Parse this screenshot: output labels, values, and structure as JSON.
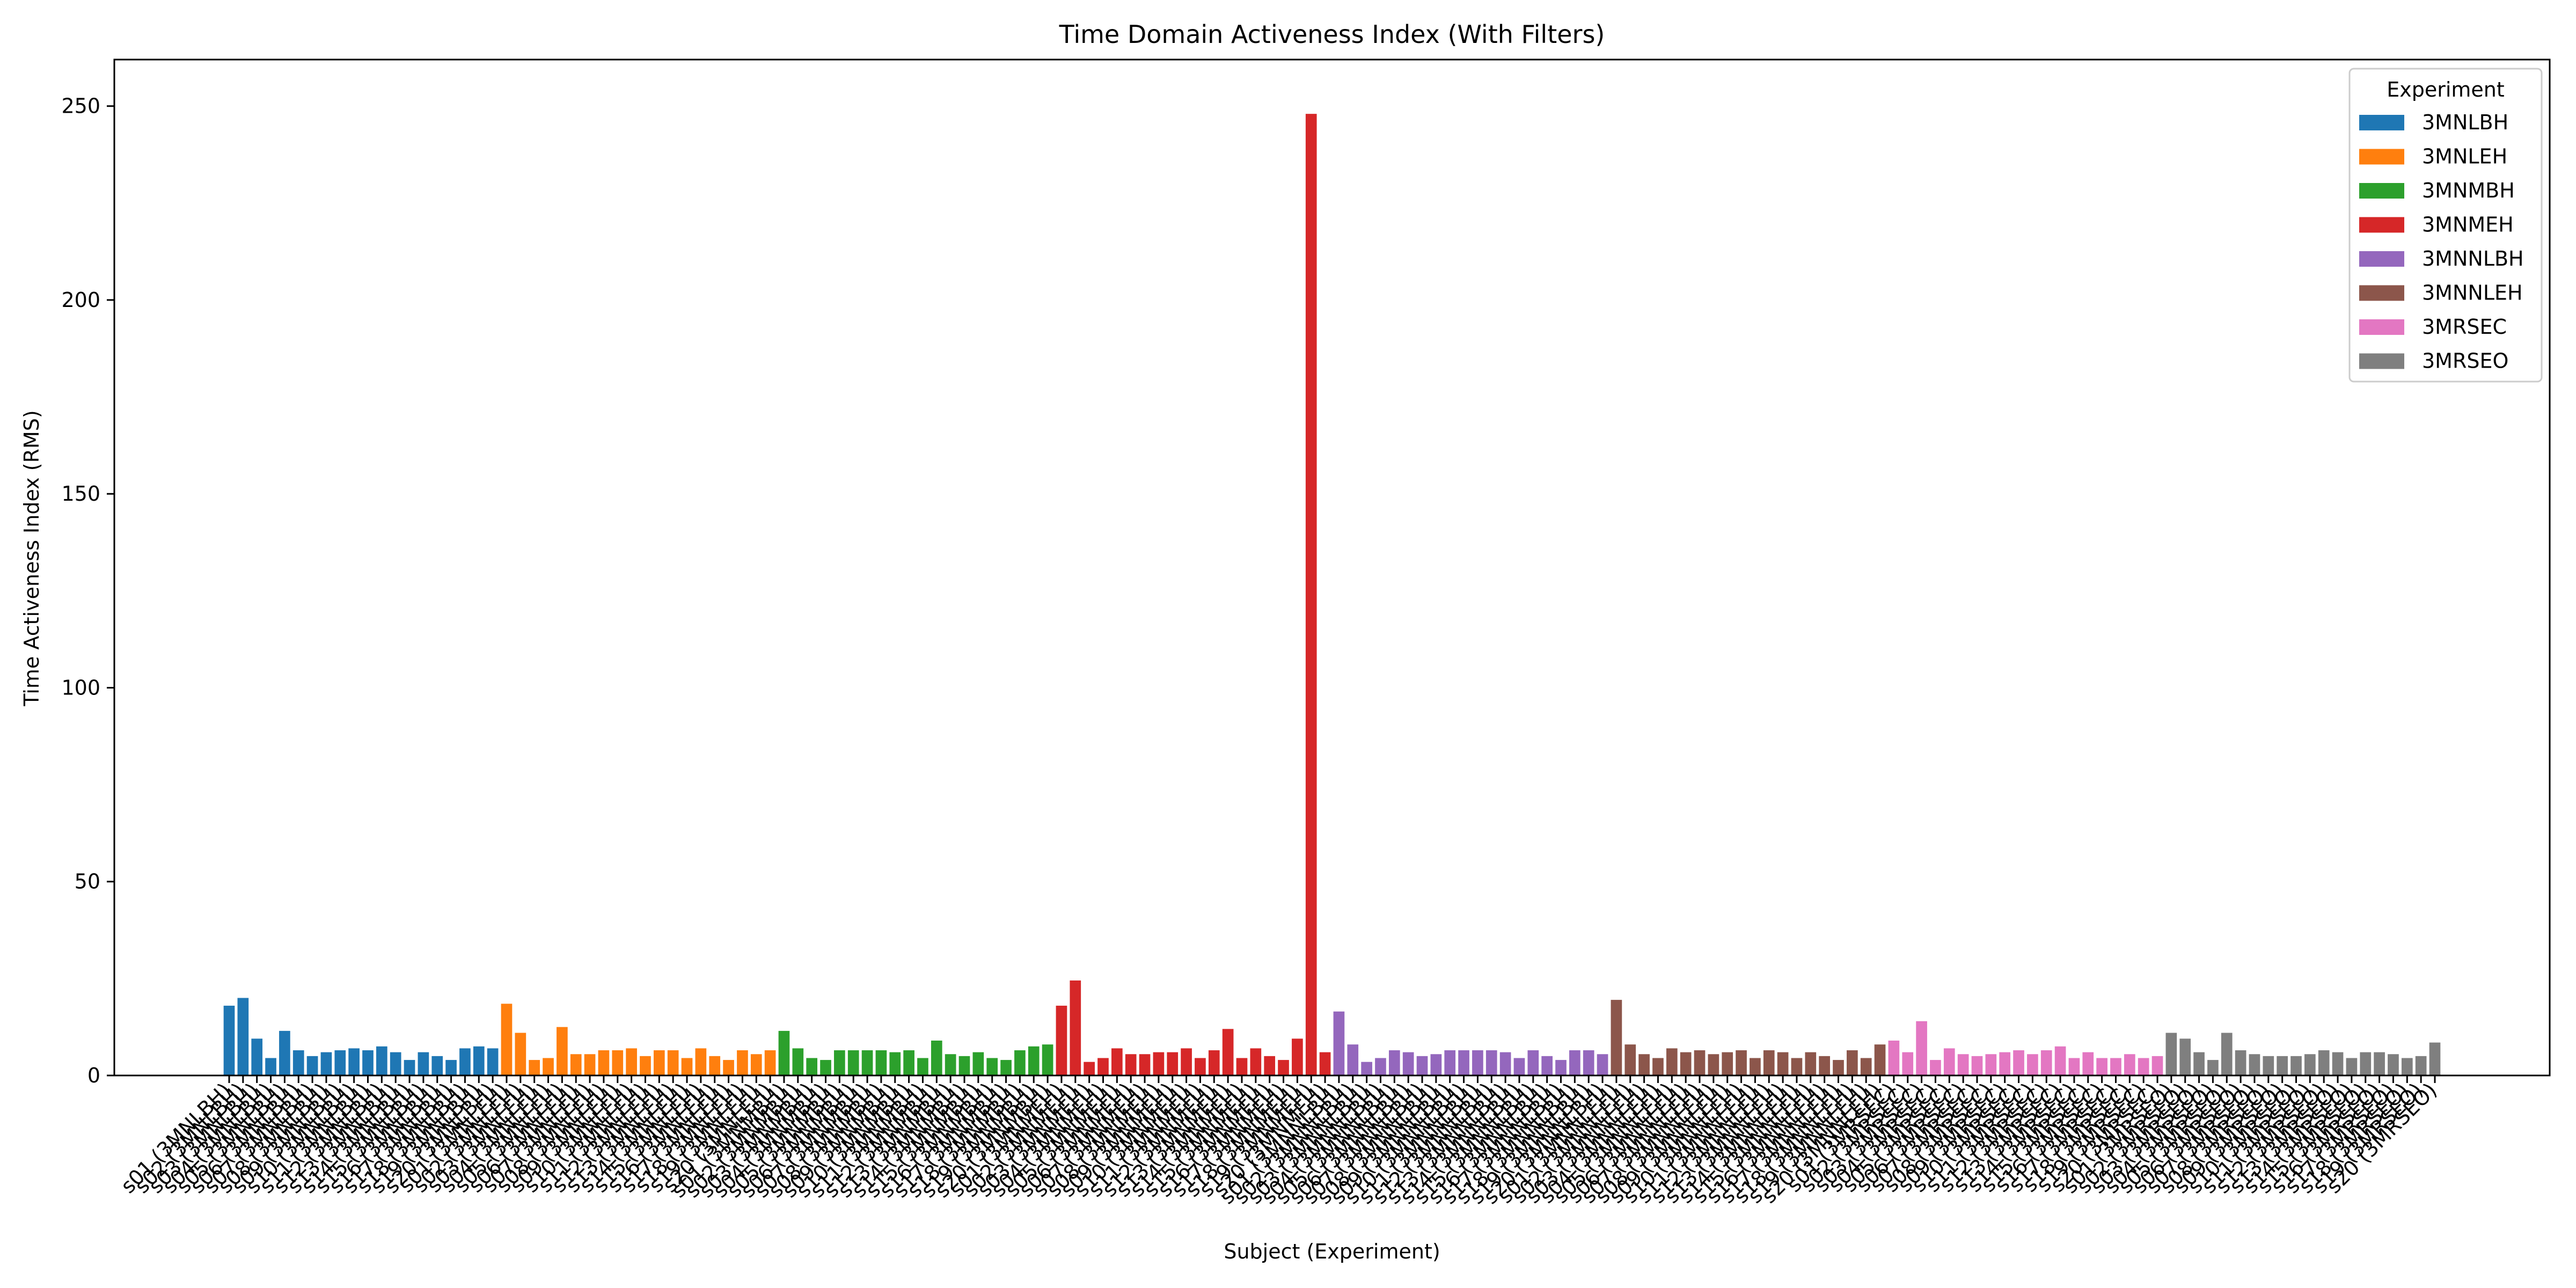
{
  "chart_data": {
    "type": "bar",
    "title": "Time Domain Activeness Index (With Filters)",
    "xlabel": "Subject (Experiment)",
    "ylabel": "Time Activeness Index (RMS)",
    "ylim": [
      0,
      262
    ],
    "yticks": [
      0,
      50,
      100,
      150,
      200,
      250
    ],
    "grid": false,
    "legend": {
      "title": "Experiment",
      "placement": "top-right"
    },
    "series": [
      {
        "name": "3MNLBH",
        "color": "#1f77b4",
        "categories": [
          "s01 (3MNLBH)",
          "s02 (3MNLBH)",
          "s03 (3MNLBH)",
          "s04 (3MNLBH)",
          "s05 (3MNLBH)",
          "s06 (3MNLBH)",
          "s07 (3MNLBH)",
          "s08 (3MNLBH)",
          "s09 (3MNLBH)",
          "s10 (3MNLBH)",
          "s11 (3MNLBH)",
          "s12 (3MNLBH)",
          "s13 (3MNLBH)",
          "s14 (3MNLBH)",
          "s15 (3MNLBH)",
          "s16 (3MNLBH)",
          "s17 (3MNLBH)",
          "s18 (3MNLBH)",
          "s19 (3MNLBH)",
          "s20 (3MNLBH)"
        ],
        "values": [
          18,
          20,
          9.5,
          4.5,
          11.5,
          6.5,
          5,
          6,
          6.5,
          7,
          6.5,
          7.5,
          6,
          4,
          6,
          5,
          4,
          7,
          7.5,
          7
        ]
      },
      {
        "name": "3MNLEH",
        "color": "#ff7f0e",
        "categories": [
          "s01 (3MNLEH)",
          "s02 (3MNLEH)",
          "s03 (3MNLEH)",
          "s04 (3MNLEH)",
          "s05 (3MNLEH)",
          "s06 (3MNLEH)",
          "s07 (3MNLEH)",
          "s08 (3MNLEH)",
          "s09 (3MNLEH)",
          "s10 (3MNLEH)",
          "s11 (3MNLEH)",
          "s12 (3MNLEH)",
          "s13 (3MNLEH)",
          "s14 (3MNLEH)",
          "s15 (3MNLEH)",
          "s16 (3MNLEH)",
          "s17 (3MNLEH)",
          "s18 (3MNLEH)",
          "s19 (3MNLEH)",
          "s20 (3MNLEH)"
        ],
        "values": [
          18.5,
          11,
          4,
          4.5,
          12.5,
          5.5,
          5.5,
          6.5,
          6.5,
          7,
          5,
          6.5,
          6.5,
          4.5,
          7,
          5,
          4,
          6.5,
          5.5,
          6.5
        ]
      },
      {
        "name": "3MNMBH",
        "color": "#2ca02c",
        "categories": [
          "s01 (3MNMBH)",
          "s02 (3MNMBH)",
          "s03 (3MNMBH)",
          "s04 (3MNMBH)",
          "s05 (3MNMBH)",
          "s06 (3MNMBH)",
          "s07 (3MNMBH)",
          "s08 (3MNMBH)",
          "s09 (3MNMBH)",
          "s10 (3MNMBH)",
          "s11 (3MNMBH)",
          "s12 (3MNMBH)",
          "s13 (3MNMBH)",
          "s14 (3MNMBH)",
          "s15 (3MNMBH)",
          "s16 (3MNMBH)",
          "s17 (3MNMBH)",
          "s18 (3MNMBH)",
          "s19 (3MNMBH)",
          "s20 (3MNMBH)"
        ],
        "values": [
          11.5,
          7,
          4.5,
          4,
          6.5,
          6.5,
          6.5,
          6.5,
          6,
          6.5,
          4.5,
          9,
          5.5,
          5,
          6,
          4.5,
          4,
          6.5,
          7.5,
          8
        ]
      },
      {
        "name": "3MNMEH",
        "color": "#d62728",
        "categories": [
          "s01 (3MNMEH)",
          "s02 (3MNMEH)",
          "s03 (3MNMEH)",
          "s04 (3MNMEH)",
          "s05 (3MNMEH)",
          "s06 (3MNMEH)",
          "s07 (3MNMEH)",
          "s08 (3MNMEH)",
          "s09 (3MNMEH)",
          "s10 (3MNMEH)",
          "s11 (3MNMEH)",
          "s12 (3MNMEH)",
          "s13 (3MNMEH)",
          "s14 (3MNMEH)",
          "s15 (3MNMEH)",
          "s16 (3MNMEH)",
          "s17 (3MNMEH)",
          "s18 (3MNMEH)",
          "s19 (3MNMEH)",
          "s20 (3MNMEH)"
        ],
        "values": [
          18,
          24.5,
          3.5,
          4.5,
          7,
          5.5,
          5.5,
          6,
          6,
          7,
          4.5,
          6.5,
          12,
          4.5,
          7,
          5,
          4,
          9.5,
          248,
          6
        ]
      },
      {
        "name": "3MNNLBH",
        "color": "#9467bd",
        "categories": [
          "s01 (3MNNLBH)",
          "s02 (3MNNLBH)",
          "s03 (3MNNLBH)",
          "s04 (3MNNLBH)",
          "s05 (3MNNLBH)",
          "s06 (3MNNLBH)",
          "s07 (3MNNLBH)",
          "s08 (3MNNLBH)",
          "s09 (3MNNLBH)",
          "s10 (3MNNLBH)",
          "s11 (3MNNLBH)",
          "s12 (3MNNLBH)",
          "s13 (3MNNLBH)",
          "s14 (3MNNLBH)",
          "s15 (3MNNLBH)",
          "s16 (3MNNLBH)",
          "s17 (3MNNLBH)",
          "s18 (3MNNLBH)",
          "s19 (3MNNLBH)",
          "s20 (3MNNLBH)"
        ],
        "values": [
          16.5,
          8,
          3.5,
          4.5,
          6.5,
          6,
          5,
          5.5,
          6.5,
          6.5,
          6.5,
          6.5,
          6,
          4.5,
          6.5,
          5,
          4,
          6.5,
          6.5,
          5.5
        ]
      },
      {
        "name": "3MNNLEH",
        "color": "#8c564b",
        "categories": [
          "s01 (3MNNLEH)",
          "s02 (3MNNLEH)",
          "s03 (3MNNLEH)",
          "s04 (3MNNLEH)",
          "s05 (3MNNLEH)",
          "s06 (3MNNLEH)",
          "s07 (3MNNLEH)",
          "s08 (3MNNLEH)",
          "s09 (3MNNLEH)",
          "s10 (3MNNLEH)",
          "s11 (3MNNLEH)",
          "s12 (3MNNLEH)",
          "s13 (3MNNLEH)",
          "s14 (3MNNLEH)",
          "s15 (3MNNLEH)",
          "s16 (3MNNLEH)",
          "s17 (3MNNLEH)",
          "s18 (3MNNLEH)",
          "s19 (3MNNLEH)",
          "s20 (3MNNLEH)"
        ],
        "values": [
          19.5,
          8,
          5.5,
          4.5,
          7,
          6,
          6.5,
          5.5,
          6,
          6.5,
          4.5,
          6.5,
          6,
          4.5,
          6,
          5,
          4,
          6.5,
          4.5,
          8
        ]
      },
      {
        "name": "3MRSEC",
        "color": "#e377c2",
        "categories": [
          "s01 (3MRSEC)",
          "s02 (3MRSEC)",
          "s03 (3MRSEC)",
          "s04 (3MRSEC)",
          "s05 (3MRSEC)",
          "s06 (3MRSEC)",
          "s07 (3MRSEC)",
          "s08 (3MRSEC)",
          "s09 (3MRSEC)",
          "s10 (3MRSEC)",
          "s11 (3MRSEC)",
          "s12 (3MRSEC)",
          "s13 (3MRSEC)",
          "s14 (3MRSEC)",
          "s15 (3MRSEC)",
          "s16 (3MRSEC)",
          "s17 (3MRSEC)",
          "s18 (3MRSEC)",
          "s19 (3MRSEC)",
          "s20 (3MRSEC)"
        ],
        "values": [
          9,
          6,
          14,
          4,
          7,
          5.5,
          5,
          5.5,
          6,
          6.5,
          5.5,
          6.5,
          7.5,
          4.5,
          6,
          4.5,
          4.5,
          5.5,
          4.5,
          5
        ]
      },
      {
        "name": "3MRSEO",
        "color": "#7f7f7f",
        "categories": [
          "s01 (3MRSEO)",
          "s02 (3MRSEO)",
          "s03 (3MRSEO)",
          "s04 (3MRSEO)",
          "s05 (3MRSEO)",
          "s06 (3MRSEO)",
          "s07 (3MRSEO)",
          "s08 (3MRSEO)",
          "s09 (3MRSEO)",
          "s10 (3MRSEO)",
          "s11 (3MRSEO)",
          "s12 (3MRSEO)",
          "s13 (3MRSEO)",
          "s14 (3MRSEO)",
          "s15 (3MRSEO)",
          "s16 (3MRSEO)",
          "s17 (3MRSEO)",
          "s18 (3MRSEO)",
          "s19 (3MRSEO)",
          "s20 (3MRSEO)"
        ],
        "values": [
          11,
          9.5,
          6,
          4,
          11,
          6.5,
          5.5,
          5,
          5,
          5,
          5.5,
          6.5,
          6,
          4.5,
          6,
          6,
          5.5,
          4.5,
          5,
          8.5
        ]
      }
    ]
  }
}
